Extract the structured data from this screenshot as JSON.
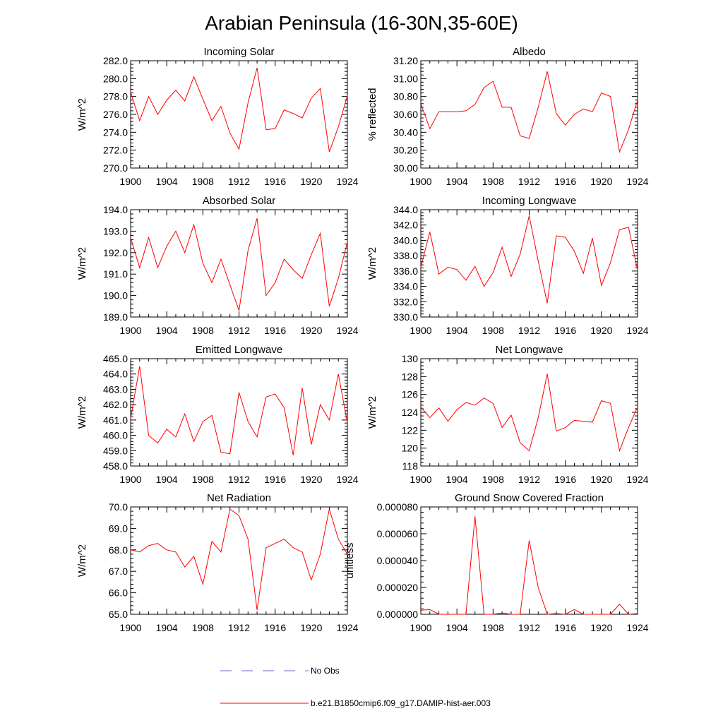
{
  "title": "Arabian Peninsula (16-30N,35-60E)",
  "legend": {
    "obs_label": "No Obs",
    "obs_color": "#6a6ad6",
    "model_label": "b.e21.B1850cmip6.f09_g17.DAMIP-hist-aer.003",
    "model_color": "#ff0000"
  },
  "x_tick_labels": [
    "1900",
    "1904",
    "1908",
    "1912",
    "1916",
    "1920",
    "1924"
  ],
  "chart_data": [
    {
      "type": "line",
      "title": "Incoming Solar",
      "ylabel": "W/m^2",
      "xlim": [
        1900,
        1924
      ],
      "ylim": [
        270,
        282
      ],
      "y_tick_labels": [
        "270.0",
        "272.0",
        "274.0",
        "276.0",
        "278.0",
        "280.0",
        "282.0"
      ],
      "y_tick_values": [
        270,
        272,
        274,
        276,
        278,
        280,
        282
      ],
      "x": [
        1900,
        1901,
        1902,
        1903,
        1904,
        1905,
        1906,
        1907,
        1908,
        1909,
        1910,
        1911,
        1912,
        1913,
        1914,
        1915,
        1916,
        1917,
        1918,
        1919,
        1920,
        1921,
        1922,
        1923,
        1924
      ],
      "series": [
        {
          "name": "b.e21.B1850cmip6.f09_g17.DAMIP-hist-aer.003",
          "values": [
            278.5,
            275.3,
            278.0,
            276.0,
            277.6,
            278.7,
            277.5,
            280.2,
            277.7,
            275.3,
            276.9,
            273.9,
            272.1,
            277.3,
            281.2,
            274.3,
            274.4,
            276.5,
            276.1,
            275.6,
            277.8,
            278.9,
            271.8,
            274.6,
            278.1
          ]
        }
      ]
    },
    {
      "type": "line",
      "title": "Albedo",
      "ylabel": "% reflected",
      "xlim": [
        1900,
        1924
      ],
      "ylim": [
        30.0,
        31.2
      ],
      "y_tick_labels": [
        "30.00",
        "30.20",
        "30.40",
        "30.60",
        "30.80",
        "31.00",
        "31.20"
      ],
      "y_tick_values": [
        30.0,
        30.2,
        30.4,
        30.6,
        30.8,
        31.0,
        31.2
      ],
      "x": [
        1900,
        1901,
        1902,
        1903,
        1904,
        1905,
        1906,
        1907,
        1908,
        1909,
        1910,
        1911,
        1912,
        1913,
        1914,
        1915,
        1916,
        1917,
        1918,
        1919,
        1920,
        1921,
        1922,
        1923,
        1924
      ],
      "series": [
        {
          "name": "b.e21.B1850cmip6.f09_g17.DAMIP-hist-aer.003",
          "values": [
            30.72,
            30.44,
            30.63,
            30.63,
            30.63,
            30.64,
            30.71,
            30.9,
            30.97,
            30.68,
            30.68,
            30.36,
            30.33,
            30.68,
            31.08,
            30.61,
            30.48,
            30.6,
            30.66,
            30.63,
            30.84,
            30.8,
            30.18,
            30.43,
            30.76
          ]
        }
      ]
    },
    {
      "type": "line",
      "title": "Absorbed Solar",
      "ylabel": "W/m^2",
      "xlim": [
        1900,
        1924
      ],
      "ylim": [
        189,
        194
      ],
      "y_tick_labels": [
        "189.0",
        "190.0",
        "191.0",
        "192.0",
        "193.0",
        "194.0"
      ],
      "y_tick_values": [
        189,
        190,
        191,
        192,
        193,
        194
      ],
      "x": [
        1900,
        1901,
        1902,
        1903,
        1904,
        1905,
        1906,
        1907,
        1908,
        1909,
        1910,
        1911,
        1912,
        1913,
        1914,
        1915,
        1916,
        1917,
        1918,
        1919,
        1920,
        1921,
        1922,
        1923,
        1924
      ],
      "series": [
        {
          "name": "b.e21.B1850cmip6.f09_g17.DAMIP-hist-aer.003",
          "values": [
            192.7,
            191.3,
            192.7,
            191.3,
            192.3,
            193.0,
            192.0,
            193.3,
            191.5,
            190.6,
            191.7,
            190.5,
            189.3,
            192.1,
            193.6,
            190.0,
            190.6,
            191.7,
            191.2,
            190.8,
            191.9,
            192.9,
            189.5,
            190.8,
            192.5
          ]
        }
      ]
    },
    {
      "type": "line",
      "title": "Incoming Longwave",
      "ylabel": "W/m^2",
      "xlim": [
        1900,
        1924
      ],
      "ylim": [
        330,
        344
      ],
      "y_tick_labels": [
        "330.0",
        "332.0",
        "334.0",
        "336.0",
        "338.0",
        "340.0",
        "342.0",
        "344.0"
      ],
      "y_tick_values": [
        330,
        332,
        334,
        336,
        338,
        340,
        342,
        344
      ],
      "x": [
        1900,
        1901,
        1902,
        1903,
        1904,
        1905,
        1906,
        1907,
        1908,
        1909,
        1910,
        1911,
        1912,
        1913,
        1914,
        1915,
        1916,
        1917,
        1918,
        1919,
        1920,
        1921,
        1922,
        1923,
        1924
      ],
      "series": [
        {
          "name": "b.e21.B1850cmip6.f09_g17.DAMIP-hist-aer.003",
          "values": [
            336.5,
            341.1,
            335.6,
            336.5,
            336.2,
            334.8,
            336.6,
            334.0,
            335.8,
            339.1,
            335.3,
            338.2,
            343.2,
            337.3,
            331.8,
            340.6,
            340.4,
            338.6,
            335.7,
            340.3,
            334.1,
            337.1,
            341.4,
            341.7,
            336.1
          ]
        }
      ]
    },
    {
      "type": "line",
      "title": "Emitted Longwave",
      "ylabel": "W/m^2",
      "xlim": [
        1900,
        1924
      ],
      "ylim": [
        458,
        465
      ],
      "y_tick_labels": [
        "458.0",
        "459.0",
        "460.0",
        "461.0",
        "462.0",
        "463.0",
        "464.0",
        "465.0"
      ],
      "y_tick_values": [
        458,
        459,
        460,
        461,
        462,
        463,
        464,
        465
      ],
      "x": [
        1900,
        1901,
        1902,
        1903,
        1904,
        1905,
        1906,
        1907,
        1908,
        1909,
        1910,
        1911,
        1912,
        1913,
        1914,
        1915,
        1916,
        1917,
        1918,
        1919,
        1920,
        1921,
        1922,
        1923,
        1924
      ],
      "series": [
        {
          "name": "b.e21.B1850cmip6.f09_g17.DAMIP-hist-aer.003",
          "values": [
            461.1,
            464.5,
            460.0,
            459.5,
            460.4,
            459.9,
            461.4,
            459.6,
            460.9,
            461.3,
            458.9,
            458.8,
            462.8,
            460.9,
            459.9,
            462.5,
            462.7,
            461.8,
            458.7,
            463.1,
            459.4,
            462.0,
            461.0,
            464.0,
            460.8
          ]
        }
      ]
    },
    {
      "type": "line",
      "title": "Net Longwave",
      "ylabel": "W/m^2",
      "xlim": [
        1900,
        1924
      ],
      "ylim": [
        118,
        130
      ],
      "y_tick_labels": [
        "118",
        "120",
        "122",
        "124",
        "126",
        "128",
        "130"
      ],
      "y_tick_values": [
        118,
        120,
        122,
        124,
        126,
        128,
        130
      ],
      "x": [
        1900,
        1901,
        1902,
        1903,
        1904,
        1905,
        1906,
        1907,
        1908,
        1909,
        1910,
        1911,
        1912,
        1913,
        1914,
        1915,
        1916,
        1917,
        1918,
        1919,
        1920,
        1921,
        1922,
        1923,
        1924
      ],
      "series": [
        {
          "name": "b.e21.B1850cmip6.f09_g17.DAMIP-hist-aer.003",
          "values": [
            124.6,
            123.4,
            124.5,
            123.0,
            124.3,
            125.1,
            124.8,
            125.6,
            125.0,
            122.3,
            123.7,
            120.6,
            119.7,
            123.4,
            128.3,
            121.9,
            122.3,
            123.1,
            123.0,
            122.9,
            125.3,
            125.0,
            119.7,
            122.3,
            124.6
          ]
        }
      ]
    },
    {
      "type": "line",
      "title": "Net Radiation",
      "ylabel": "W/m^2",
      "xlim": [
        1900,
        1924
      ],
      "ylim": [
        65,
        70
      ],
      "y_tick_labels": [
        "65.0",
        "66.0",
        "67.0",
        "68.0",
        "69.0",
        "70.0"
      ],
      "y_tick_values": [
        65,
        66,
        67,
        68,
        69,
        70
      ],
      "x": [
        1900,
        1901,
        1902,
        1903,
        1904,
        1905,
        1906,
        1907,
        1908,
        1909,
        1910,
        1911,
        1912,
        1913,
        1914,
        1915,
        1916,
        1917,
        1918,
        1919,
        1920,
        1921,
        1922,
        1923,
        1924
      ],
      "series": [
        {
          "name": "b.e21.B1850cmip6.f09_g17.DAMIP-hist-aer.003",
          "values": [
            68.0,
            67.9,
            68.2,
            68.3,
            68.0,
            67.9,
            67.2,
            67.7,
            66.4,
            68.4,
            67.9,
            69.9,
            69.6,
            68.5,
            65.2,
            68.1,
            68.3,
            68.5,
            68.1,
            67.9,
            66.6,
            67.8,
            69.9,
            68.5,
            67.8
          ]
        }
      ]
    },
    {
      "type": "line",
      "title": "Ground Snow Covered Fraction",
      "ylabel": "unitless",
      "xlim": [
        1900,
        1924
      ],
      "ylim": [
        0,
        8e-05
      ],
      "y_tick_labels": [
        "0.000000",
        "0.000020",
        "0.000040",
        "0.000060",
        "0.000080"
      ],
      "y_tick_values": [
        0,
        2e-05,
        4e-05,
        6e-05,
        8e-05
      ],
      "x": [
        1900,
        1901,
        1902,
        1903,
        1904,
        1905,
        1906,
        1907,
        1908,
        1909,
        1910,
        1911,
        1912,
        1913,
        1914,
        1915,
        1916,
        1917,
        1918,
        1919,
        1920,
        1921,
        1922,
        1923,
        1924
      ],
      "series": [
        {
          "name": "b.e21.B1850cmip6.f09_g17.DAMIP-hist-aer.003",
          "values": [
            3e-06,
            3.5e-06,
            0,
            0,
            0,
            0,
            7.3e-05,
            0,
            0,
            1e-06,
            0,
            0,
            5.5e-05,
            2e-05,
            0,
            5e-07,
            0,
            3.5e-06,
            0,
            0,
            0,
            0,
            7.5e-06,
            0,
            5e-07
          ]
        }
      ]
    }
  ]
}
